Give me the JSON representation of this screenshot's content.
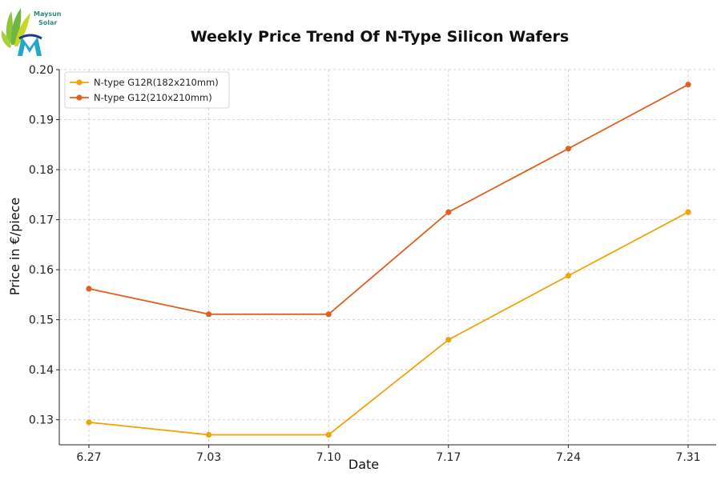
{
  "logo": {
    "line1": "Maysun",
    "line2": "Solar"
  },
  "chart_data": {
    "type": "line",
    "title": "Weekly Price Trend Of N-Type Silicon Wafers",
    "xlabel": "Date",
    "ylabel": "Price in €/piece",
    "categories": [
      "6.27",
      "7.03",
      "7.10",
      "7.17",
      "7.24",
      "7.31"
    ],
    "ylim": [
      0.125,
      0.2
    ],
    "yticks": [
      "0.13",
      "0.14",
      "0.15",
      "0.16",
      "0.17",
      "0.18",
      "0.19",
      "0.20"
    ],
    "grid": true,
    "legend_position": "top-left",
    "series": [
      {
        "name": "N-type G12R(182x210mm)",
        "color": "#f0a30a",
        "values": [
          0.1295,
          0.127,
          0.127,
          0.146,
          0.1588,
          0.1715
        ]
      },
      {
        "name": "N-type G12(210x210mm)",
        "color": "#e0601c",
        "values": [
          0.1562,
          0.1511,
          0.1511,
          0.1715,
          0.1842,
          0.197
        ]
      }
    ]
  }
}
